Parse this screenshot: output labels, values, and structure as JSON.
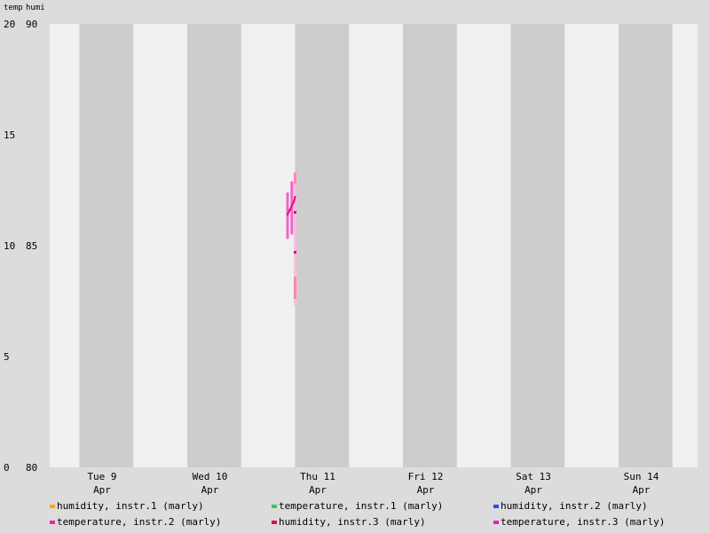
{
  "chart_data": {
    "type": "line",
    "axis_titles": {
      "temp": "temp",
      "humi": "humi"
    },
    "ylim_temp": [
      0,
      20
    ],
    "ylim_humi": [
      80,
      90
    ],
    "temp_ticks": [
      "0",
      "5",
      "10",
      "15",
      "20"
    ],
    "humi_ticks": [
      "80",
      "85",
      "90"
    ],
    "xlim_days": [
      8.5,
      14.75
    ],
    "x_ticks": [
      {
        "day": 9,
        "line1": "Tue 9",
        "line2": "Apr"
      },
      {
        "day": 10,
        "line1": "Wed 10",
        "line2": "Apr"
      },
      {
        "day": 11,
        "line1": "Thu 11",
        "line2": "Apr"
      },
      {
        "day": 12,
        "line1": "Fri 12",
        "line2": "Apr"
      },
      {
        "day": 13,
        "line1": "Sat 13",
        "line2": "Apr"
      },
      {
        "day": 14,
        "line1": "Sun 14",
        "line2": "Apr"
      }
    ],
    "series": [
      {
        "name": "humidity, instr.1 (marly)",
        "color": "#ffa500",
        "axis": "humi",
        "points": []
      },
      {
        "name": "temperature, instr.1 (marly)",
        "color": "#33cc55",
        "axis": "temp",
        "points": []
      },
      {
        "name": "humidity, instr.2 (marly)",
        "color": "#2255ee",
        "axis": "humi",
        "points": []
      },
      {
        "name": "temperature, instr.2 (marly)",
        "color": "#ee22aa",
        "axis": "temp",
        "points": []
      },
      {
        "name": "humidity, instr.3 (marly)",
        "color": "#dd1155",
        "axis": "humi",
        "points": []
      },
      {
        "name": "temperature, instr.3 (marly)",
        "color": "#dd22cc",
        "axis": "temp",
        "points": []
      }
    ],
    "ranges": [
      {
        "day": 10.72,
        "low": 10.3,
        "high": 12.4,
        "color": "#ee66cc"
      },
      {
        "day": 10.76,
        "low": 10.5,
        "high": 12.9,
        "color": "#ee66cc"
      },
      {
        "day": 10.79,
        "low": 7.3,
        "high": 13.3,
        "color": "#ffbbdd"
      },
      {
        "day": 10.79,
        "low": 7.6,
        "high": 8.6,
        "color": "#ff88aa"
      },
      {
        "day": 10.79,
        "low": 12.8,
        "high": 13.3,
        "color": "#ff88aa"
      }
    ],
    "line": {
      "color": "#dd1177",
      "points": [
        [
          10.72,
          11.4
        ],
        [
          10.74,
          11.6
        ],
        [
          10.76,
          11.8
        ],
        [
          10.78,
          12.0
        ],
        [
          10.79,
          12.2
        ]
      ]
    },
    "markers": [
      {
        "day": 10.79,
        "value": 11.5,
        "color": "#dd1177"
      },
      {
        "day": 10.79,
        "value": 9.7,
        "color": "#dd1177"
      }
    ]
  }
}
